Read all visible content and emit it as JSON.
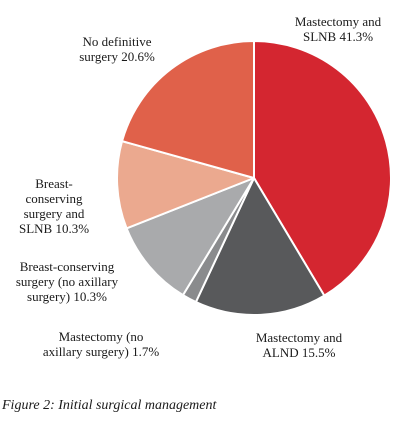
{
  "chart_data": {
    "type": "pie",
    "slices": [
      {
        "label": "Mastectomy and SLNB",
        "value": 41.3,
        "display": [
          "Mastectomy and",
          "SLNB 41.3%"
        ],
        "color": "#d42630"
      },
      {
        "label": "Mastectomy and ALND",
        "value": 15.5,
        "display": [
          "Mastectomy and",
          "ALND 15.5%"
        ],
        "color": "#58595b"
      },
      {
        "label": "Mastectomy (no axillary surgery)",
        "value": 1.7,
        "display": [
          "Mastectomy (no",
          "axillary surgery) 1.7%"
        ],
        "color": "#8a8b8d"
      },
      {
        "label": "Breast-conserving surgery (no axillary surgery)",
        "value": 10.3,
        "display": [
          "Breast-conserving",
          "surgery (no axillary",
          "surgery) 10.3%"
        ],
        "color": "#a9aaac"
      },
      {
        "label": "Breast-conserving surgery and SLNB",
        "value": 10.3,
        "display": [
          "Breast-",
          "conserving",
          "surgery and",
          "SLNB 10.3%"
        ],
        "color": "#eba98f"
      },
      {
        "label": "No definitive surgery",
        "value": 20.6,
        "display": [
          "No definitive",
          "surgery 20.6%"
        ],
        "color": "#e0614a"
      }
    ],
    "title": "",
    "start_angle": "12 o'clock",
    "direction": "clockwise",
    "legend": "none"
  },
  "caption": "Figure 2: Initial surgical management"
}
